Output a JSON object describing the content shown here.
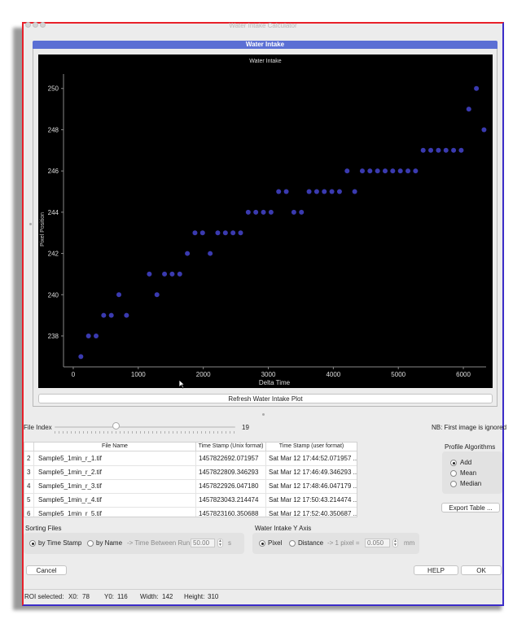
{
  "window": {
    "title": "Water Intake Calculator"
  },
  "group": {
    "title": "Water Intake"
  },
  "chart_data": {
    "type": "scatter",
    "title": "Water Intake",
    "xlabel": "Delta Time",
    "ylabel": "Pixel Position",
    "xlim": [
      -150,
      6350
    ],
    "ylim": [
      236.5,
      250.7
    ],
    "xticks": [
      0,
      1000,
      2000,
      3000,
      4000,
      5000,
      6000
    ],
    "yticks": [
      238,
      240,
      242,
      244,
      246,
      248,
      250
    ],
    "grid": false,
    "marker_color": "#3a3ab0",
    "series": [
      {
        "points": [
          [
            117,
            237
          ],
          [
            234,
            238
          ],
          [
            351,
            238
          ],
          [
            468,
            239
          ],
          [
            585,
            239
          ],
          [
            702,
            240
          ],
          [
            819,
            239
          ],
          [
            1170,
            241
          ],
          [
            1287,
            240
          ],
          [
            1404,
            241
          ],
          [
            1521,
            241
          ],
          [
            1638,
            241
          ],
          [
            1755,
            242
          ],
          [
            1872,
            243
          ],
          [
            1989,
            243
          ],
          [
            2106,
            242
          ],
          [
            2223,
            243
          ],
          [
            2340,
            243
          ],
          [
            2457,
            243
          ],
          [
            2574,
            243
          ],
          [
            2691,
            244
          ],
          [
            2808,
            244
          ],
          [
            2925,
            244
          ],
          [
            3042,
            244
          ],
          [
            3159,
            245
          ],
          [
            3276,
            245
          ],
          [
            3393,
            244
          ],
          [
            3510,
            244
          ],
          [
            3627,
            245
          ],
          [
            3744,
            245
          ],
          [
            3861,
            245
          ],
          [
            3978,
            245
          ],
          [
            4095,
            245
          ],
          [
            4212,
            246
          ],
          [
            4329,
            245
          ],
          [
            4446,
            246
          ],
          [
            4563,
            246
          ],
          [
            4680,
            246
          ],
          [
            4797,
            246
          ],
          [
            4914,
            246
          ],
          [
            5031,
            246
          ],
          [
            5148,
            246
          ],
          [
            5265,
            246
          ],
          [
            5382,
            247
          ],
          [
            5499,
            247
          ],
          [
            5616,
            247
          ],
          [
            5733,
            247
          ],
          [
            5850,
            247
          ],
          [
            5967,
            247
          ],
          [
            6084,
            249
          ],
          [
            6201,
            250
          ],
          [
            6318,
            248
          ]
        ]
      }
    ]
  },
  "refresh_label": "Refresh Water Intake Plot",
  "file_index": {
    "label": "File Index",
    "value": "19",
    "slider_fraction": 0.34
  },
  "note": "NB: First image is ignored",
  "table": {
    "headers": [
      "File Name",
      "Time Stamp (Unix format)",
      "Time Stamp (user format)"
    ],
    "rows": [
      {
        "num": "2",
        "name": "Sample5_1min_r_1.tif",
        "unix": "1457822692.071957",
        "user": "Sat Mar 12 17:44:52.071957 ..."
      },
      {
        "num": "3",
        "name": "Sample5_1min_r_2.tif",
        "unix": "1457822809.346293",
        "user": "Sat Mar 12 17:46:49.346293 ..."
      },
      {
        "num": "4",
        "name": "Sample5_1min_r_3.tif",
        "unix": "1457822926.047180",
        "user": "Sat Mar 12 17:48:46.047179 ..."
      },
      {
        "num": "5",
        "name": "Sample5_1min_r_4.tif",
        "unix": "1457823043.214474",
        "user": "Sat Mar 12 17:50:43.214474 ..."
      },
      {
        "num": "6",
        "name": "Sample5_1min_r_5.tif",
        "unix": "1457823160.350688",
        "user": "Sat Mar 12 17:52:40.350687 ..."
      }
    ]
  },
  "profile": {
    "title": "Profile Algorithms",
    "options": [
      {
        "label": "Add",
        "selected": true
      },
      {
        "label": "Mean",
        "selected": false
      },
      {
        "label": "Median",
        "selected": false
      }
    ]
  },
  "export_label": "Export Table ...",
  "sorting": {
    "title": "Sorting Files",
    "by_time": "by Time Stamp",
    "by_name": "by Name",
    "between_label": "-> Time Between Run",
    "between_value": "50.00",
    "unit": "s"
  },
  "yaxis": {
    "title": "Water Intake Y Axis",
    "pixel": "Pixel",
    "distance": "Distance",
    "pixel_eq": "-> 1 pixel =",
    "pixel_value": "0.050",
    "unit": "mm"
  },
  "buttons": {
    "cancel": "Cancel",
    "help": "HELP",
    "ok": "OK"
  },
  "roi": {
    "label": "ROI selected:",
    "x0_label": "X0:",
    "x0": "78",
    "y0_label": "Y0:",
    "y0": "116",
    "width_label": "Width:",
    "width": "142",
    "height_label": "Height:",
    "height": "310"
  }
}
